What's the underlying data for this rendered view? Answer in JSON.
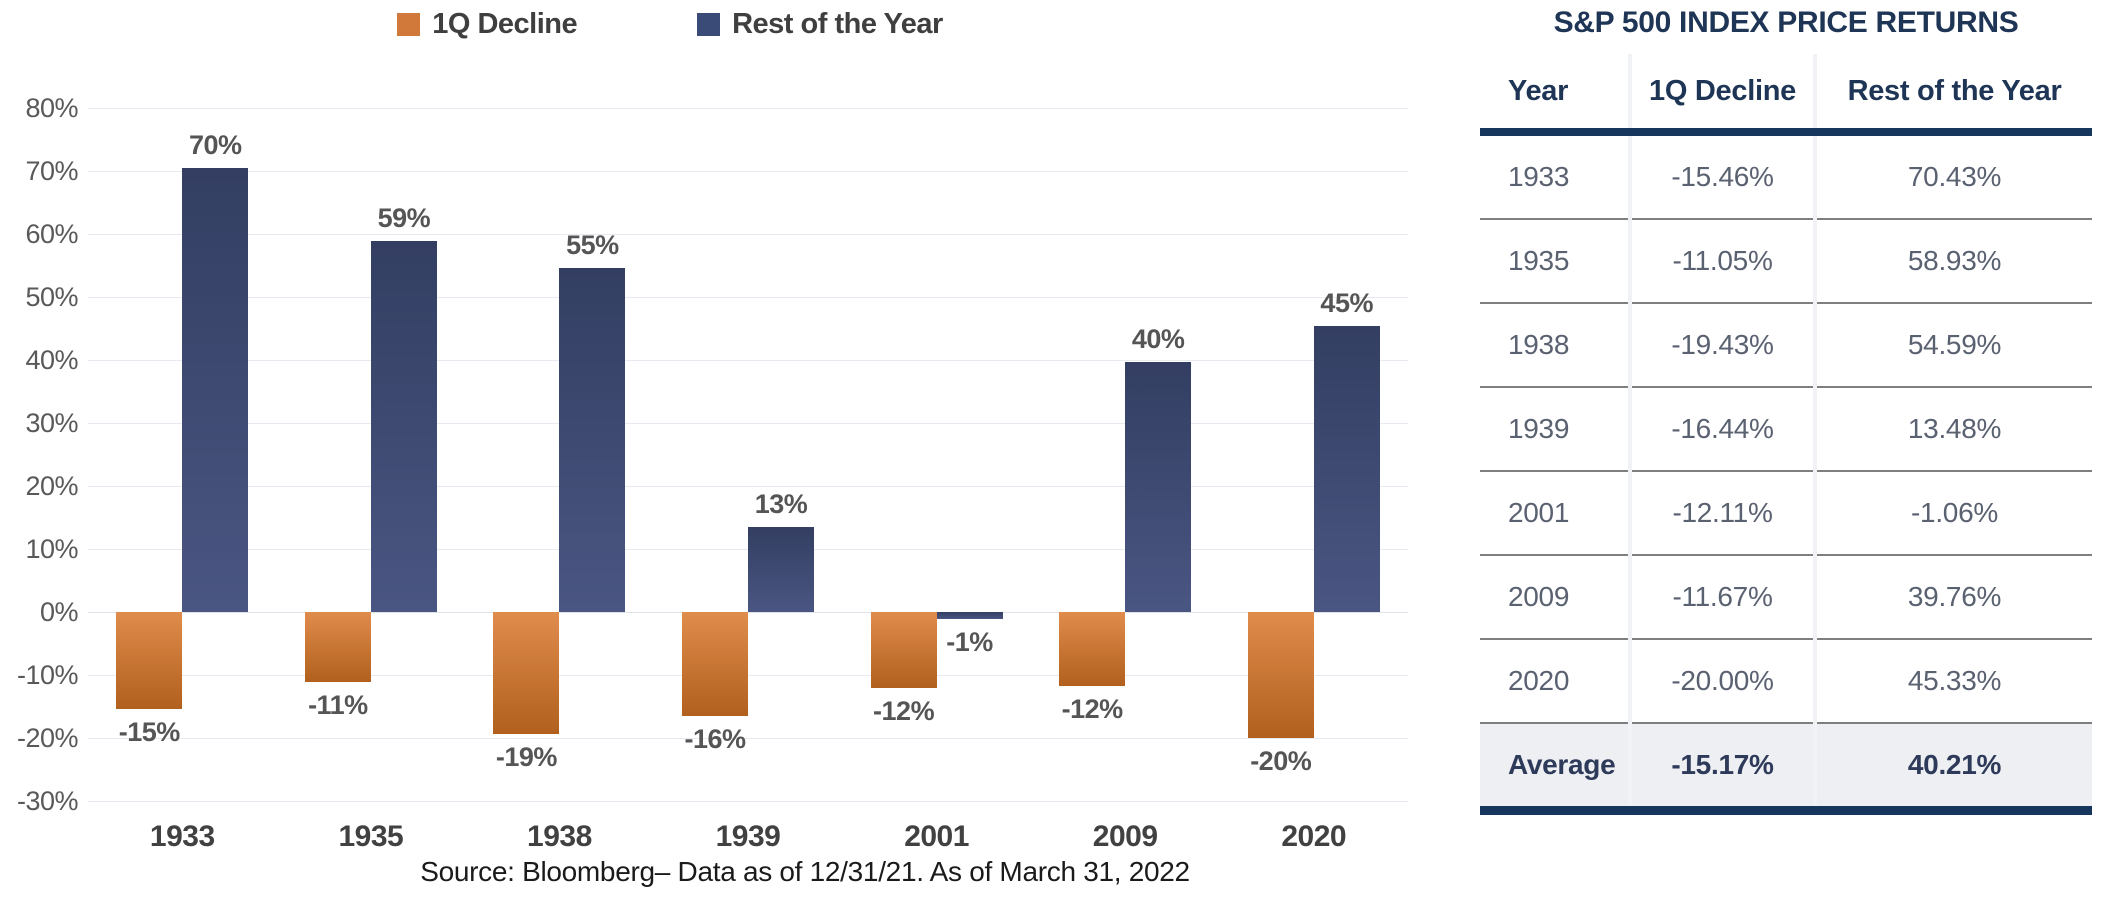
{
  "legend": {
    "items": [
      {
        "label": "1Q Decline",
        "swatch_color": "#d0793b"
      },
      {
        "label": "Rest of the Year",
        "swatch_color": "#3b4b77"
      }
    ]
  },
  "chart_data": {
    "type": "bar",
    "title": "",
    "categories": [
      "1933",
      "1935",
      "1938",
      "1939",
      "2001",
      "2009",
      "2020"
    ],
    "series": [
      {
        "name": "1Q Decline",
        "values": [
          -15.46,
          -11.05,
          -19.43,
          -16.44,
          -12.11,
          -11.67,
          -20.0
        ],
        "labels": [
          "-15%",
          "-11%",
          "-19%",
          "-16%",
          "-12%",
          "-12%",
          "-20%"
        ],
        "color_top": "#df8c4c",
        "color_bottom": "#b2601e"
      },
      {
        "name": "Rest of the Year",
        "values": [
          70.43,
          58.93,
          54.59,
          13.48,
          -1.06,
          39.76,
          45.33
        ],
        "labels": [
          "70%",
          "59%",
          "55%",
          "13%",
          "-1%",
          "40%",
          "45%"
        ],
        "color_top": "#333e62",
        "color_bottom": "#4a5682"
      }
    ],
    "ylabel": "",
    "xlabel": "",
    "ylim": [
      -30,
      80
    ],
    "ytick_step": 10,
    "ytick_suffix": "%",
    "grid": "horizontal",
    "legend_position": "top"
  },
  "table": {
    "title": "S&P 500 INDEX PRICE RETURNS",
    "columns": [
      "Year",
      "1Q Decline",
      "Rest of the Year"
    ],
    "rows": [
      [
        "1933",
        "-15.46%",
        "70.43%"
      ],
      [
        "1935",
        "-11.05%",
        "58.93%"
      ],
      [
        "1938",
        "-19.43%",
        "54.59%"
      ],
      [
        "1939",
        "-16.44%",
        "13.48%"
      ],
      [
        "2001",
        "-12.11%",
        "-1.06%"
      ],
      [
        "2009",
        "-11.67%",
        "39.76%"
      ],
      [
        "2020",
        "-20.00%",
        "45.33%"
      ]
    ],
    "average": [
      "Average",
      "-15.17%",
      "40.21%"
    ]
  },
  "source": "Source: Bloomberg–  Data as of 12/31/21.  As of March 31, 2022",
  "colors": {
    "gridline": "#e7eaf0",
    "zero_line": "#dfe3ea",
    "axis_text": "#595959",
    "year_label_text": "#414141",
    "bar_label_text": "#555555",
    "table_navy": "#17365d",
    "table_header_text": "#1f3556",
    "table_row_text": "#5a6170",
    "average_row_bg": "#edeff2",
    "row_divider": "#7f7f7f"
  }
}
